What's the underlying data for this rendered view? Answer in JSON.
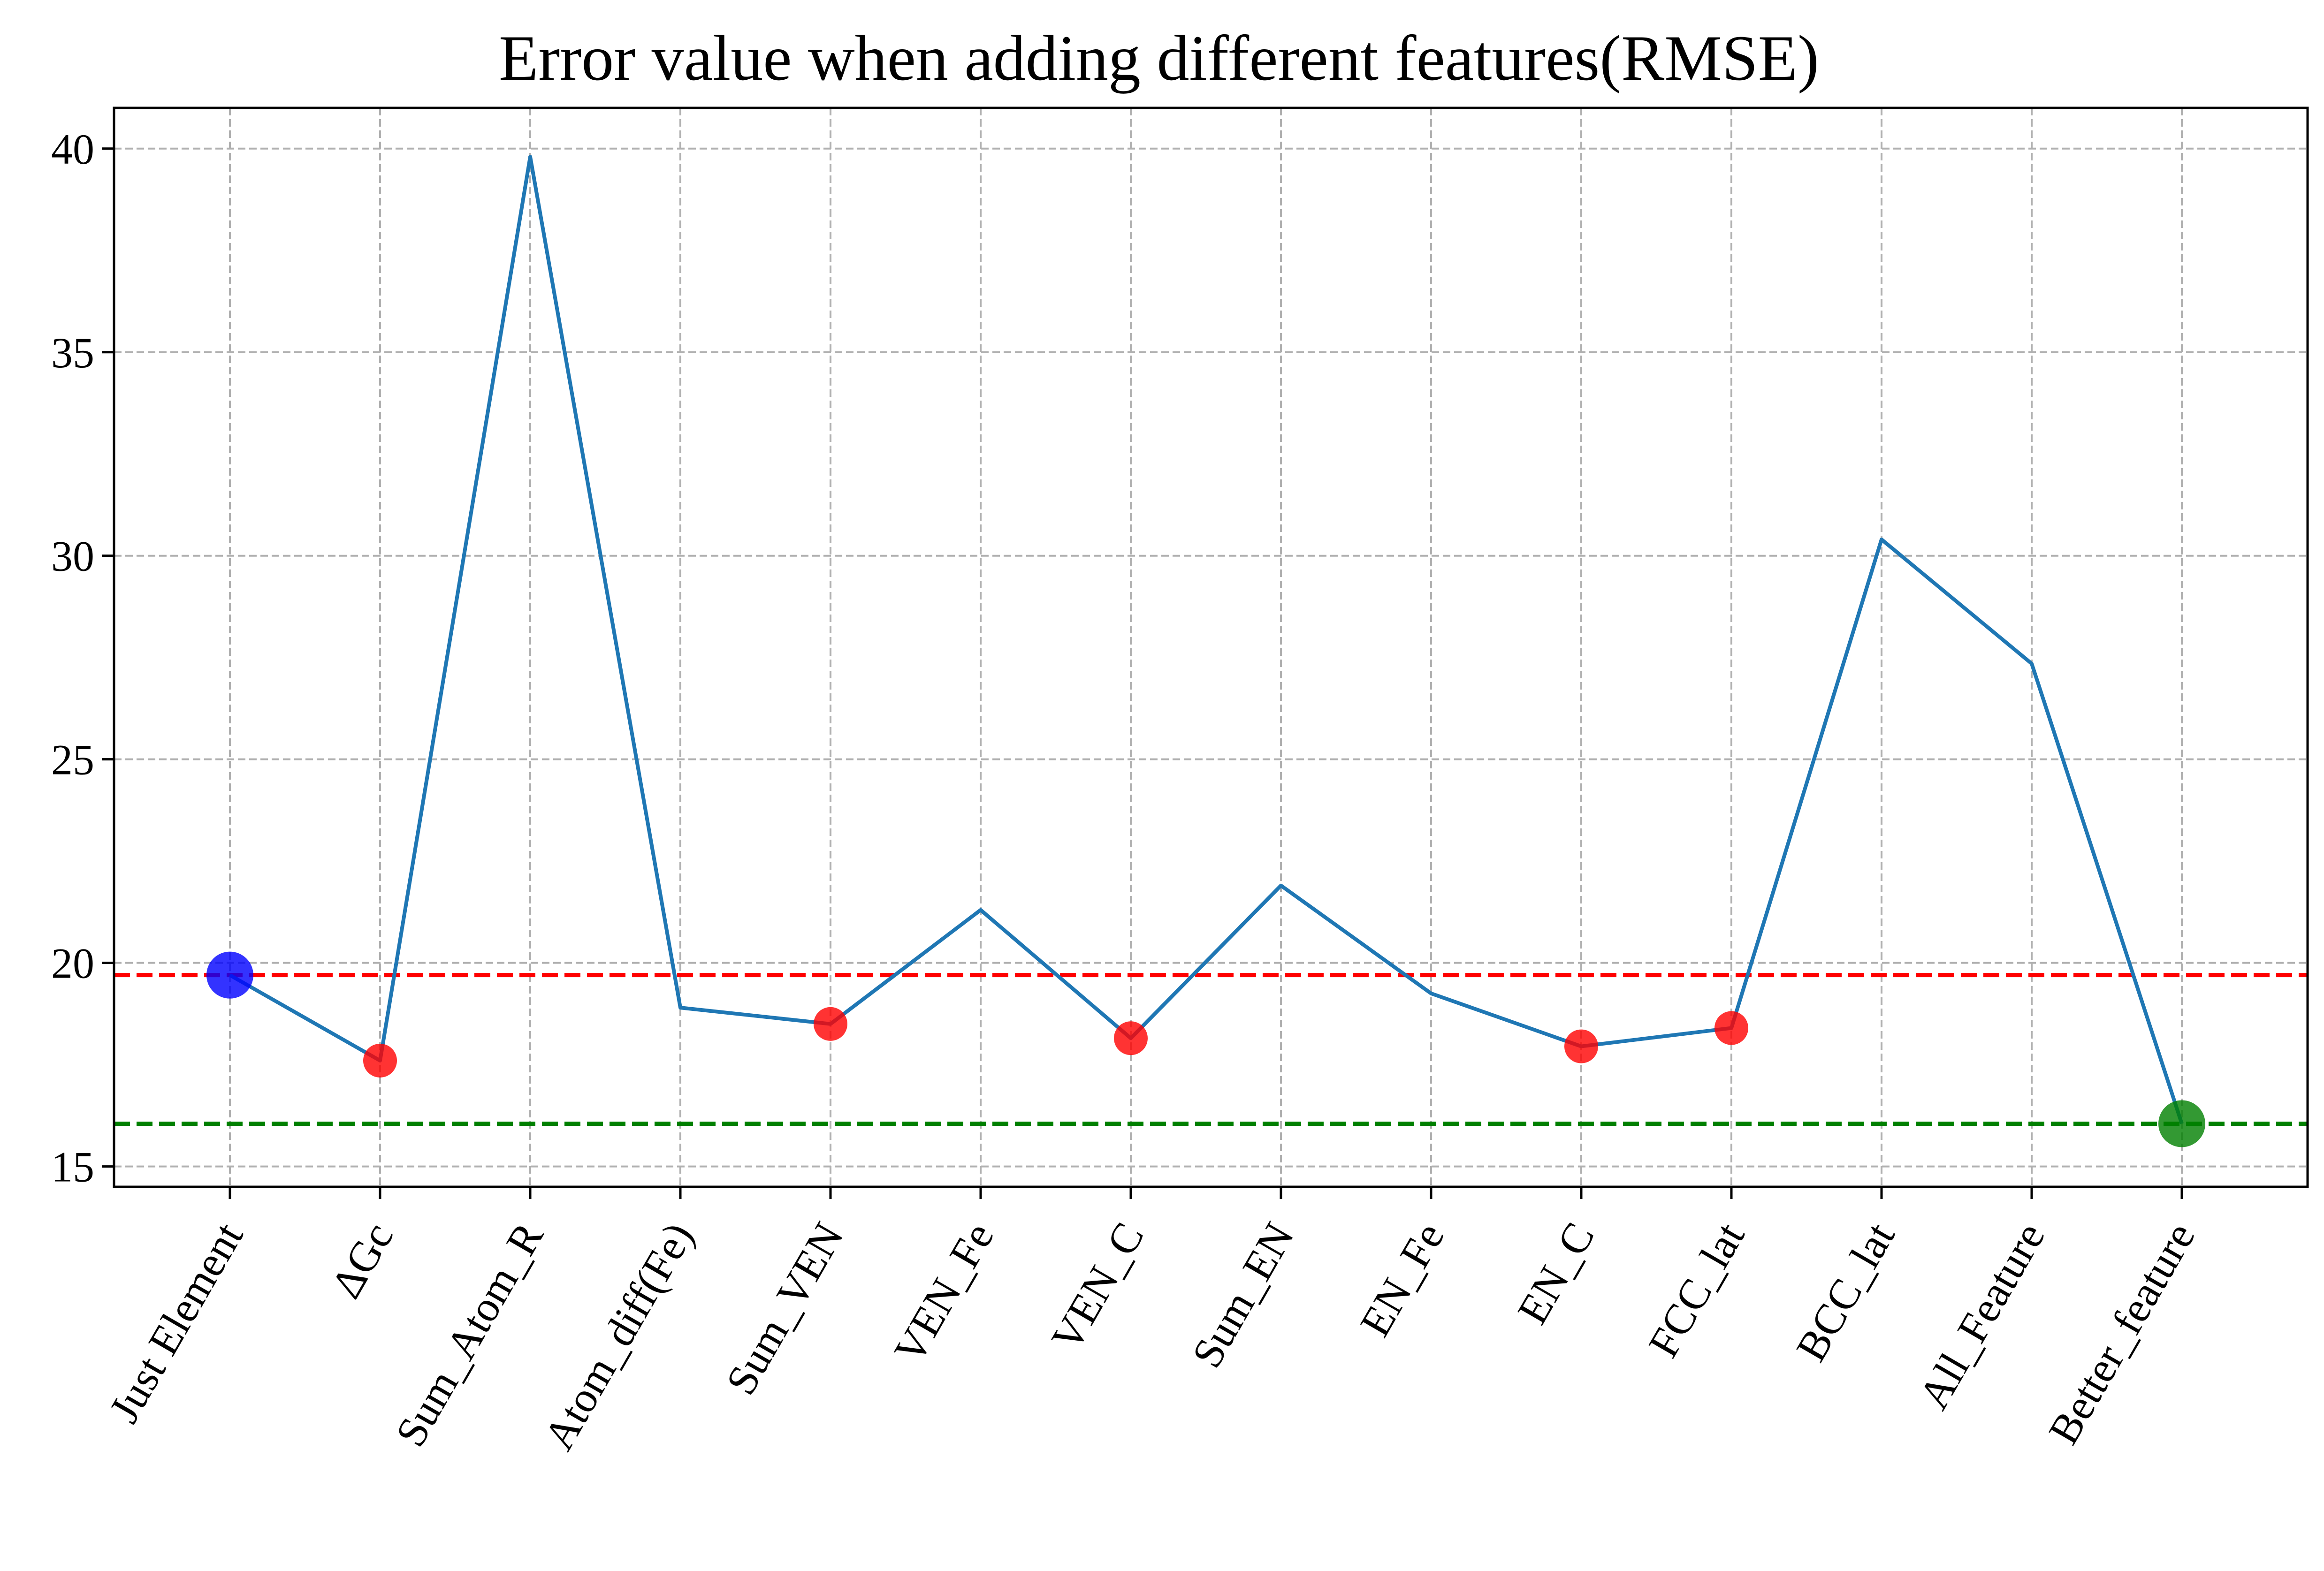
{
  "chart_data": {
    "type": "line",
    "title": "Error value when adding different features(RMSE)",
    "xlabel": "",
    "ylabel": "",
    "categories": [
      "Just Element",
      "ΔGc",
      "Sum_Atom_R",
      "Atom_diff(Fe)",
      "Sum_VEN",
      "VEN_Fe",
      "VEN_C",
      "Sum_EN",
      "EN_Fe",
      "EN_C",
      "FCC_lat",
      "BCC_lat",
      "All_Feature",
      "Better_feature"
    ],
    "series": [
      {
        "values": [
          19.7,
          17.6,
          39.8,
          18.9,
          18.5,
          21.3,
          18.15,
          21.9,
          19.25,
          17.95,
          18.4,
          30.4,
          27.35,
          16.05
        ],
        "color": "#1f77b4"
      }
    ],
    "highlights": [
      {
        "category": "Just Element",
        "value": 19.7,
        "color": "#0000ff",
        "size": "large"
      },
      {
        "category": "ΔGc",
        "value": 17.6,
        "color": "#ff0000",
        "size": "small"
      },
      {
        "category": "Sum_VEN",
        "value": 18.5,
        "color": "#ff0000",
        "size": "small"
      },
      {
        "category": "VEN_C",
        "value": 18.15,
        "color": "#ff0000",
        "size": "small"
      },
      {
        "category": "EN_C",
        "value": 17.95,
        "color": "#ff0000",
        "size": "small"
      },
      {
        "category": "FCC_lat",
        "value": 18.4,
        "color": "#ff0000",
        "size": "small"
      },
      {
        "category": "Better_feature",
        "value": 16.05,
        "color": "#008000",
        "size": "large"
      }
    ],
    "reference_lines": [
      {
        "value": 19.7,
        "color": "#ff0000",
        "style": "dashed"
      },
      {
        "value": 16.05,
        "color": "#008000",
        "style": "dashed"
      }
    ],
    "yticks": [
      15,
      20,
      25,
      30,
      35,
      40
    ],
    "ylim": [
      14.5,
      41.0
    ],
    "grid": true,
    "legend": "none"
  }
}
